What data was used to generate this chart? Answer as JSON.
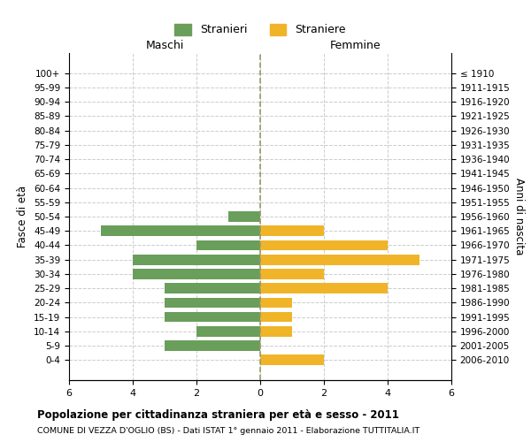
{
  "age_groups": [
    "0-4",
    "5-9",
    "10-14",
    "15-19",
    "20-24",
    "25-29",
    "30-34",
    "35-39",
    "40-44",
    "45-49",
    "50-54",
    "55-59",
    "60-64",
    "65-69",
    "70-74",
    "75-79",
    "80-84",
    "85-89",
    "90-94",
    "95-99",
    "100+"
  ],
  "birth_years": [
    "2006-2010",
    "2001-2005",
    "1996-2000",
    "1991-1995",
    "1986-1990",
    "1981-1985",
    "1976-1980",
    "1971-1975",
    "1966-1970",
    "1961-1965",
    "1956-1960",
    "1951-1955",
    "1946-1950",
    "1941-1945",
    "1936-1940",
    "1931-1935",
    "1926-1930",
    "1921-1925",
    "1916-1920",
    "1911-1915",
    "≤ 1910"
  ],
  "males": [
    0,
    3,
    2,
    3,
    3,
    3,
    4,
    4,
    2,
    5,
    1,
    0,
    0,
    0,
    0,
    0,
    0,
    0,
    0,
    0,
    0
  ],
  "females": [
    2,
    0,
    1,
    1,
    1,
    4,
    2,
    5,
    4,
    2,
    0,
    0,
    0,
    0,
    0,
    0,
    0,
    0,
    0,
    0,
    0
  ],
  "male_color": "#6a9e5b",
  "female_color": "#f0b429",
  "bar_height": 0.72,
  "xlim": 6,
  "title": "Popolazione per cittadinanza straniera per età e sesso - 2011",
  "subtitle": "COMUNE DI VEZZA D'OGLIO (BS) - Dati ISTAT 1° gennaio 2011 - Elaborazione TUTTITALIA.IT",
  "xlabel_left": "Maschi",
  "xlabel_right": "Femmine",
  "ylabel_left": "Fasce di età",
  "ylabel_right": "Anni di nascita",
  "legend_male": "Stranieri",
  "legend_female": "Straniere",
  "bg_color": "#ffffff",
  "grid_color": "#cccccc",
  "zero_line_color": "#999966"
}
